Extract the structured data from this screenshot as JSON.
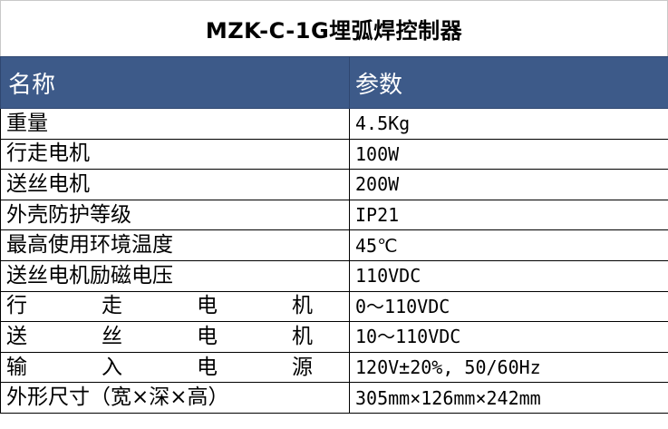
{
  "title": "MZK-C-1G埋弧焊控制器",
  "header": {
    "name": "名称",
    "param": "参数"
  },
  "rows": [
    {
      "name": "重量",
      "value": "4.5Kg"
    },
    {
      "name": "行走电机",
      "value": "100W"
    },
    {
      "name": "送丝电机",
      "value": "200W"
    },
    {
      "name": "外壳防护等级",
      "value": "IP21"
    },
    {
      "name": "最高使用环境温度",
      "value": "45℃"
    },
    {
      "name": "送丝电机励磁电压",
      "value": "110VDC"
    },
    {
      "name": "行走电机",
      "value": "0～110VDC",
      "spaced": true,
      "chars": [
        "行",
        "走",
        "电",
        "机"
      ]
    },
    {
      "name": "送丝电机",
      "value": "10～110VDC",
      "spaced": true,
      "chars": [
        "送",
        "丝",
        "电",
        "机"
      ]
    },
    {
      "name": "输入电源",
      "value": "120V±20%, 50/60Hz",
      "spaced": true,
      "chars": [
        "输",
        "入",
        "电",
        "源"
      ]
    },
    {
      "name": "外形尺寸（宽×深×高）",
      "value": "305mm×126mm×242mm"
    }
  ]
}
